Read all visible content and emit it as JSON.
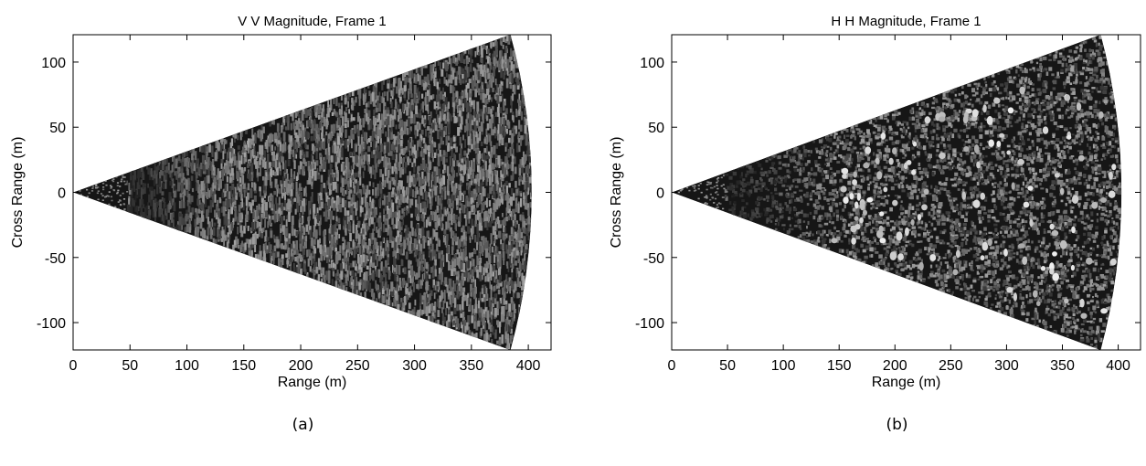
{
  "chart_data": [
    {
      "type": "heatmap",
      "panel_label": "(a)",
      "title": "V V Magnitude, Frame 1",
      "xlabel": "Range (m)",
      "ylabel": "Cross Range (m)",
      "xlim": [
        0,
        420
      ],
      "ylim": [
        -121,
        121
      ],
      "xticks": [
        0,
        50,
        100,
        150,
        200,
        250,
        300,
        350,
        400
      ],
      "yticks": [
        -100,
        -50,
        0,
        50,
        100
      ],
      "colormap": "grayscale",
      "sector": {
        "max_range": 403,
        "half_angle_deg": 17.5
      },
      "texture": {
        "near_range_end": 48,
        "dark_band": [
          50,
          130
        ],
        "style": "streaky speckle"
      },
      "grid": false
    },
    {
      "type": "heatmap",
      "panel_label": "(b)",
      "title": "H H Magnitude, Frame 1",
      "xlabel": "Range (m)",
      "ylabel": "Cross Range (m)",
      "xlim": [
        0,
        420
      ],
      "ylim": [
        -121,
        121
      ],
      "xticks": [
        0,
        50,
        100,
        150,
        200,
        250,
        300,
        350,
        400
      ],
      "yticks": [
        -100,
        -50,
        0,
        50,
        100
      ],
      "colormap": "grayscale",
      "sector": {
        "max_range": 403,
        "half_angle_deg": 17.5
      },
      "texture": {
        "near_range_end": 48,
        "dark_band": [
          50,
          150
        ],
        "style": "speckle with bright point scatterers"
      },
      "grid": false
    }
  ]
}
